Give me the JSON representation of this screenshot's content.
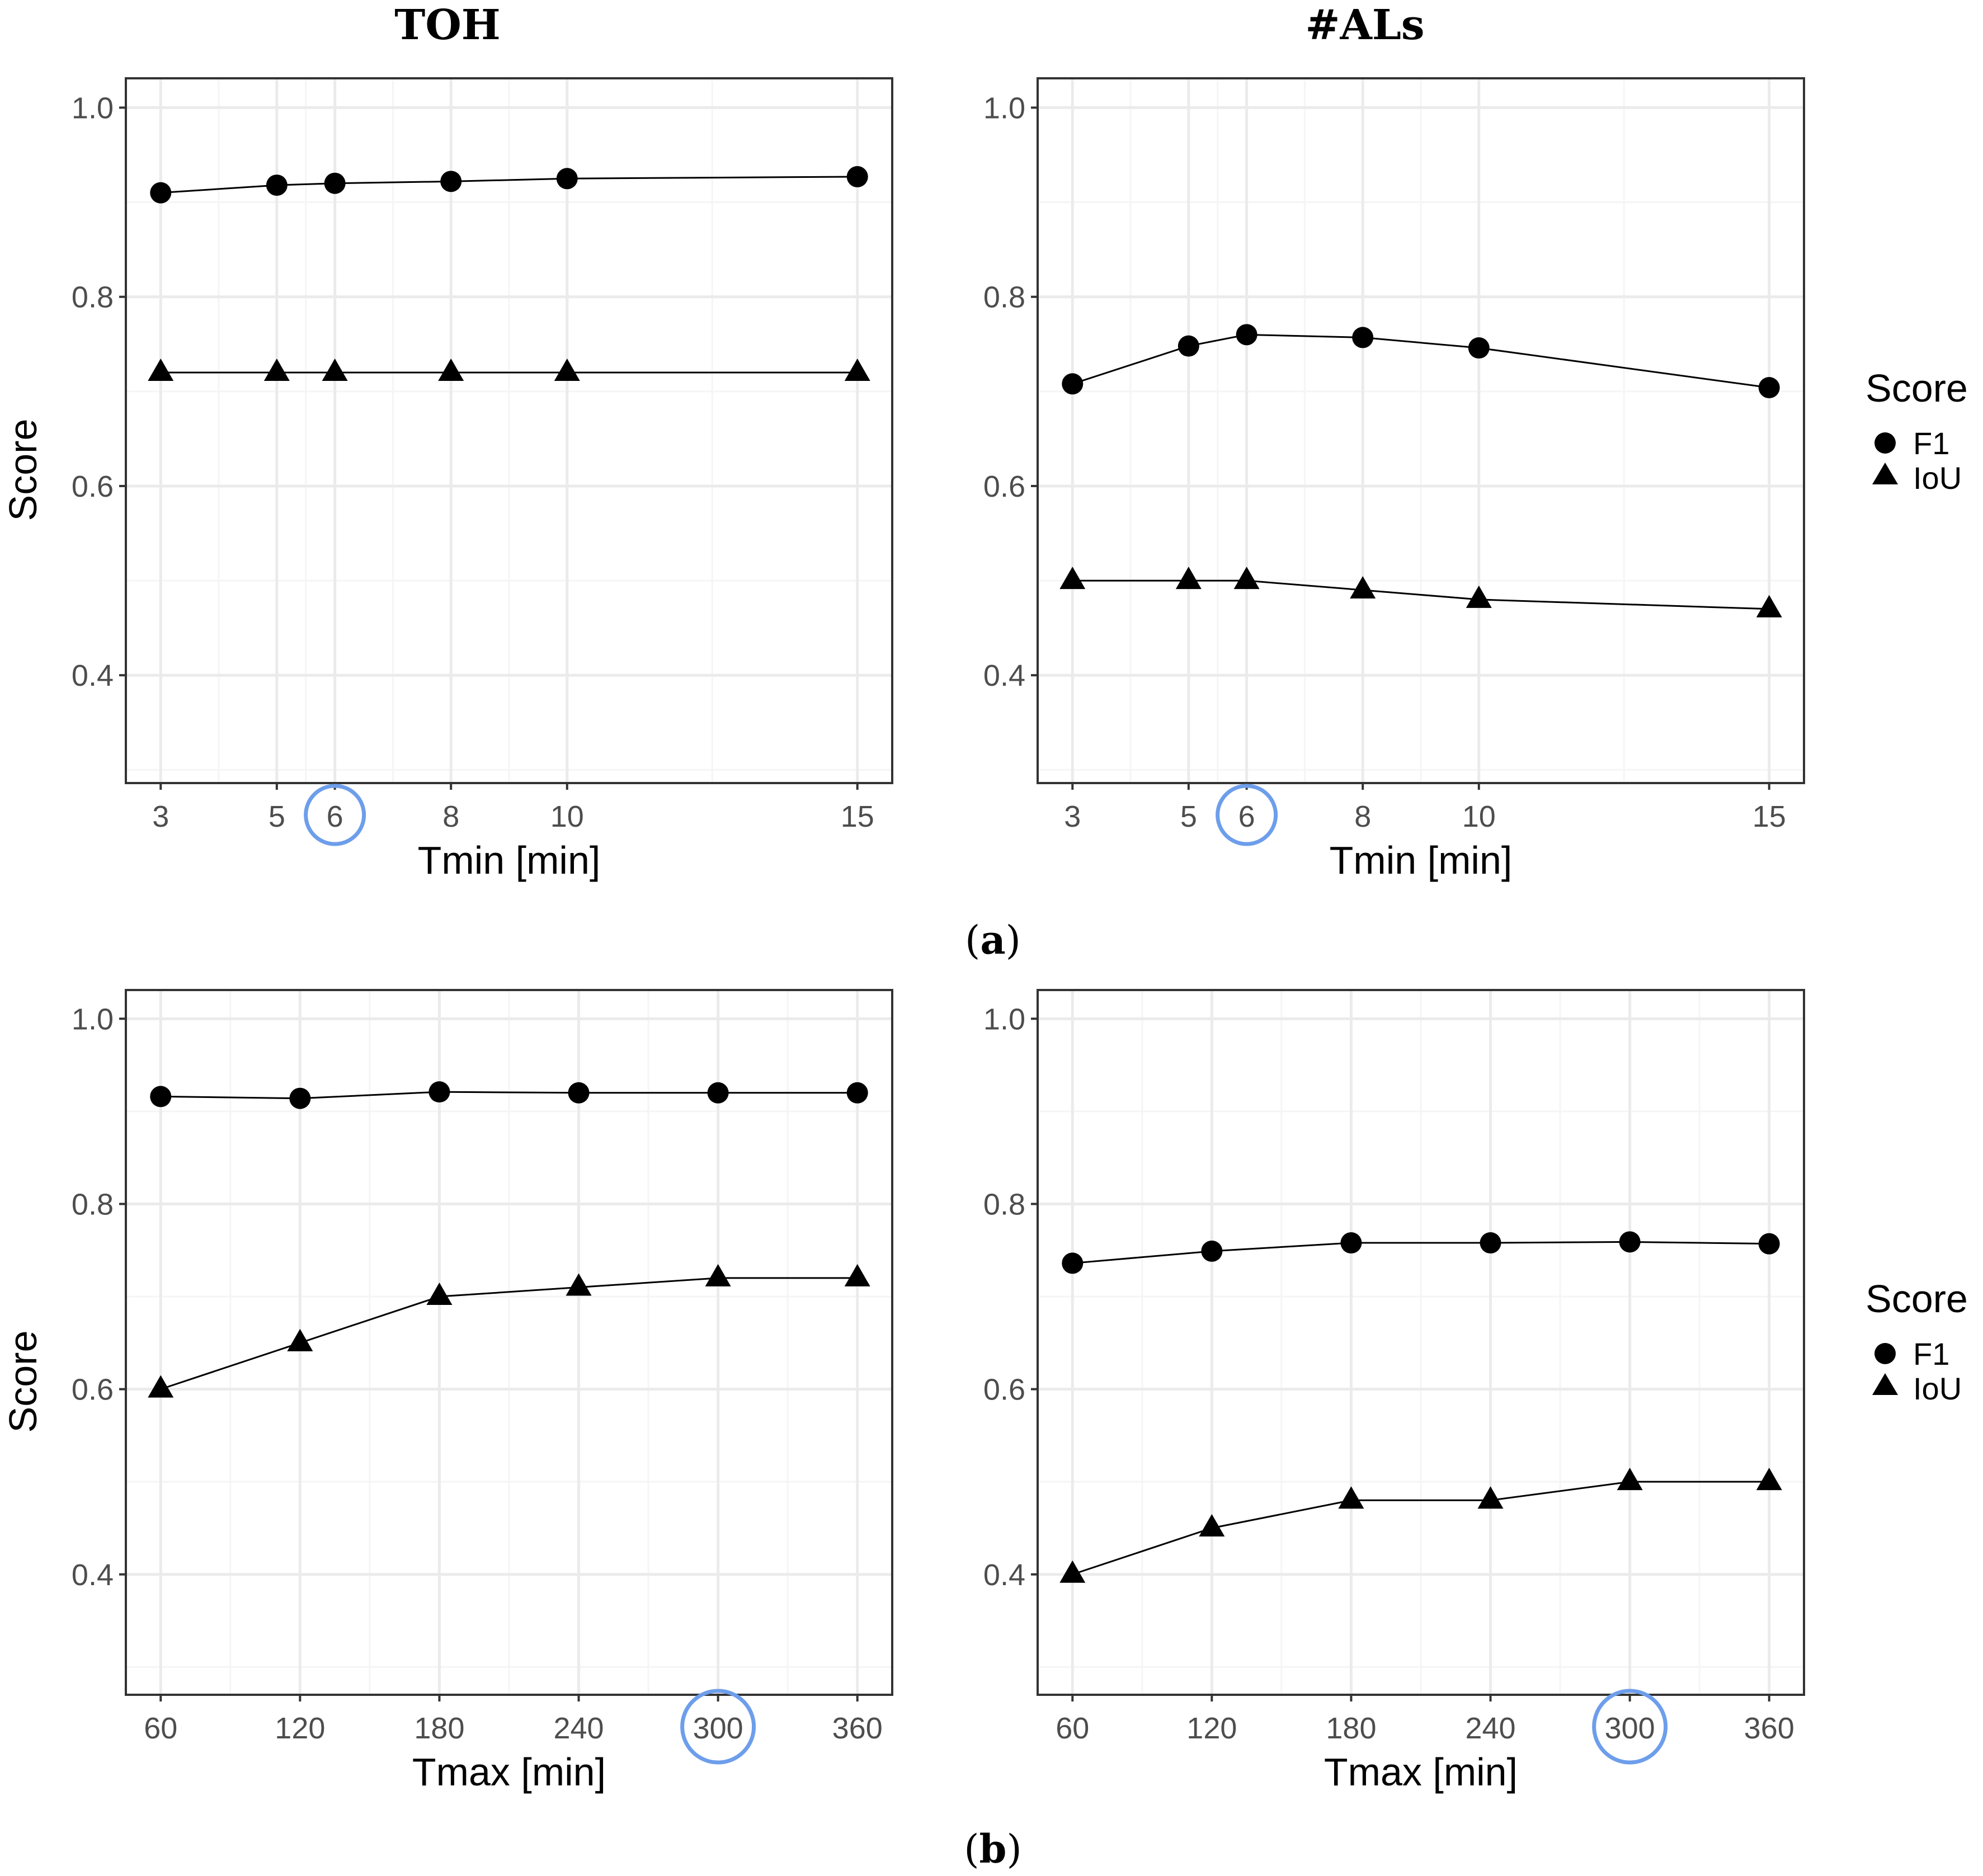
{
  "figure": {
    "column_titles": [
      "TOH",
      "#ALs"
    ],
    "subfigure_labels": [
      {
        "open": "(",
        "letter": "a",
        "close": ")"
      },
      {
        "open": "(",
        "letter": "b",
        "close": ")"
      }
    ]
  },
  "legend": {
    "title": "Score",
    "items": [
      {
        "label": "F1",
        "shape": "circle"
      },
      {
        "label": "IoU",
        "shape": "triangle"
      }
    ]
  },
  "colors": {
    "marker": "#000000",
    "line": "#000000",
    "panel_border": "#333333",
    "grid_major": "#ebebeb",
    "grid_minor": "#f5f5f5",
    "highlight": "#6d9eeb",
    "tick_text": "#4d4d4d"
  },
  "chart_data": [
    {
      "type": "line",
      "panel": "a",
      "column": "TOH",
      "xlabel": "Tmin [min]",
      "ylabel": "Score",
      "x": [
        3,
        5,
        6,
        8,
        10,
        15
      ],
      "xticks": [
        "3",
        "5",
        "6",
        "8",
        "10",
        "15"
      ],
      "xlim": [
        2.4,
        15.6
      ],
      "ylim": [
        0.286,
        1.031
      ],
      "yticks": [
        "0.4",
        "0.6",
        "0.8",
        "1.0"
      ],
      "highlight_x": "6",
      "series": [
        {
          "name": "F1",
          "marker": "circle",
          "values": [
            0.91,
            0.918,
            0.92,
            0.922,
            0.925,
            0.927
          ]
        },
        {
          "name": "IoU",
          "marker": "triangle",
          "values": [
            0.72,
            0.72,
            0.72,
            0.72,
            0.72,
            0.72
          ]
        }
      ]
    },
    {
      "type": "line",
      "panel": "a",
      "column": "#ALs",
      "xlabel": "Tmin [min]",
      "ylabel": "",
      "x": [
        3,
        5,
        6,
        8,
        10,
        15
      ],
      "xticks": [
        "3",
        "5",
        "6",
        "8",
        "10",
        "15"
      ],
      "xlim": [
        2.4,
        15.6
      ],
      "ylim": [
        0.286,
        1.031
      ],
      "yticks": [
        "0.4",
        "0.6",
        "0.8",
        "1.0"
      ],
      "highlight_x": "6",
      "series": [
        {
          "name": "F1",
          "marker": "circle",
          "values": [
            0.708,
            0.748,
            0.76,
            0.757,
            0.746,
            0.704
          ]
        },
        {
          "name": "IoU",
          "marker": "triangle",
          "values": [
            0.5,
            0.5,
            0.5,
            0.49,
            0.48,
            0.47
          ]
        }
      ]
    },
    {
      "type": "line",
      "panel": "b",
      "column": "TOH",
      "xlabel": "Tmax [min]",
      "ylabel": "Score",
      "x": [
        60,
        120,
        180,
        240,
        300,
        360
      ],
      "xticks": [
        "60",
        "120",
        "180",
        "240",
        "300",
        "360"
      ],
      "xlim": [
        45,
        375
      ],
      "ylim": [
        0.27,
        1.031
      ],
      "yticks": [
        "0.4",
        "0.6",
        "0.8",
        "1.0"
      ],
      "highlight_x": "300",
      "series": [
        {
          "name": "F1",
          "marker": "circle",
          "values": [
            0.916,
            0.914,
            0.921,
            0.92,
            0.92,
            0.92
          ]
        },
        {
          "name": "IoU",
          "marker": "triangle",
          "values": [
            0.6,
            0.65,
            0.7,
            0.71,
            0.72,
            0.72
          ]
        }
      ]
    },
    {
      "type": "line",
      "panel": "b",
      "column": "#ALs",
      "xlabel": "Tmax [min]",
      "ylabel": "",
      "x": [
        60,
        120,
        180,
        240,
        300,
        360
      ],
      "xticks": [
        "60",
        "120",
        "180",
        "240",
        "300",
        "360"
      ],
      "xlim": [
        45,
        375
      ],
      "ylim": [
        0.27,
        1.031
      ],
      "yticks": [
        "0.4",
        "0.6",
        "0.8",
        "1.0"
      ],
      "highlight_x": "300",
      "series": [
        {
          "name": "F1",
          "marker": "circle",
          "values": [
            0.736,
            0.749,
            0.758,
            0.758,
            0.759,
            0.757
          ]
        },
        {
          "name": "IoU",
          "marker": "triangle",
          "values": [
            0.4,
            0.45,
            0.48,
            0.48,
            0.5,
            0.5
          ]
        }
      ]
    }
  ]
}
